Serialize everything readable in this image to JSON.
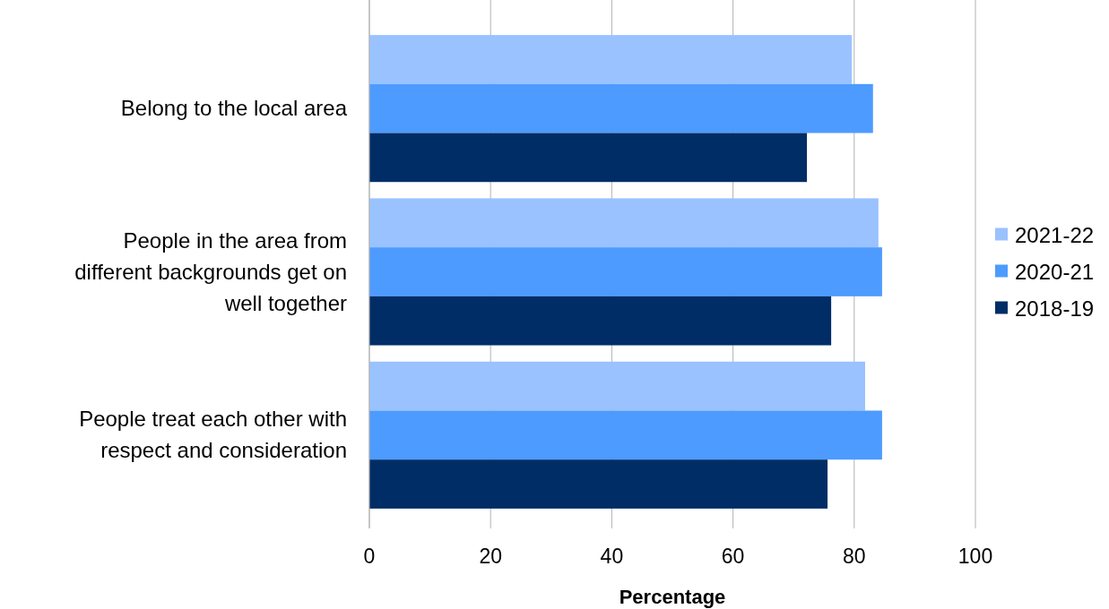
{
  "chart_data": {
    "type": "bar",
    "orientation": "horizontal",
    "xlabel": "Percentage",
    "categories": [
      "Belong to the local area",
      "People in the area from different backgrounds get on well together",
      "People treat each other with respect and consideration"
    ],
    "series": [
      {
        "name": "2021-22",
        "color": "#99c2ff",
        "values": [
          79.6,
          84.0,
          81.8
        ]
      },
      {
        "name": "2020-21",
        "color": "#4d9bff",
        "values": [
          83.1,
          84.6,
          84.6
        ]
      },
      {
        "name": "2018-19",
        "color": "#002d66",
        "values": [
          72.2,
          76.2,
          75.6
        ]
      }
    ],
    "xlim": [
      0,
      100
    ],
    "xticks": [
      0,
      20,
      40,
      60,
      80,
      100
    ],
    "grid": "x",
    "legend": "right"
  }
}
